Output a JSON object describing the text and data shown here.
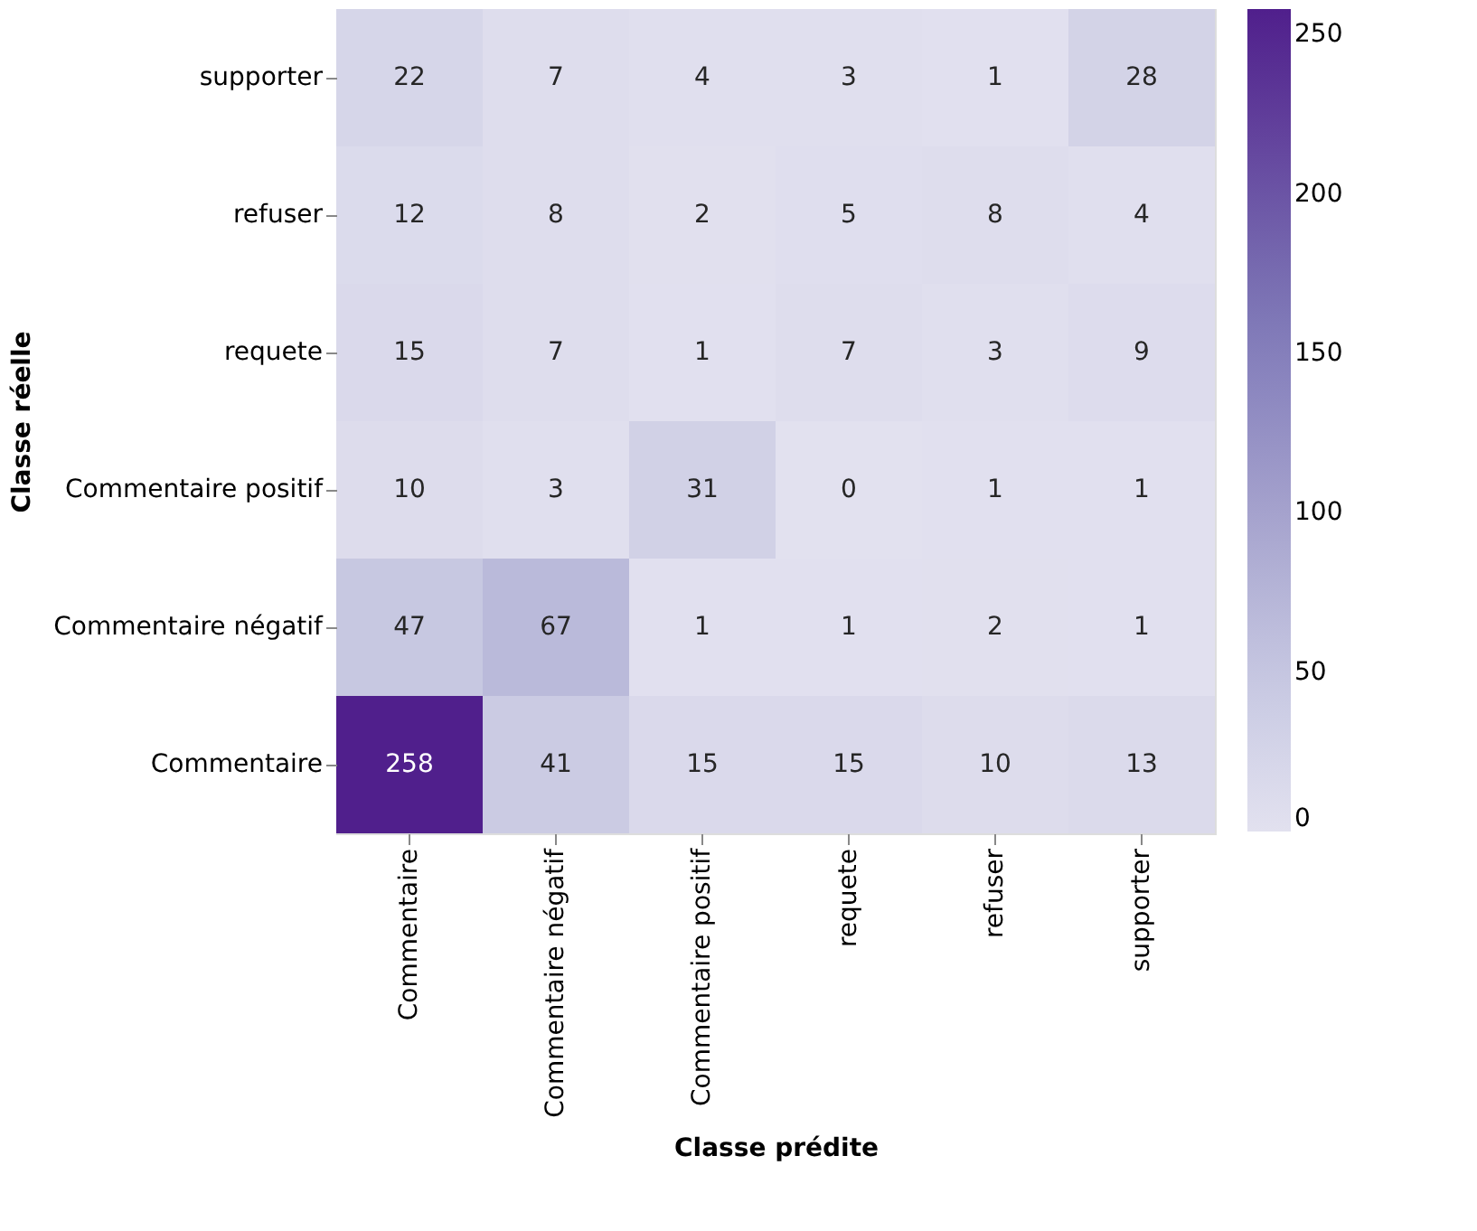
{
  "chart_data": {
    "type": "heatmap",
    "xlabel": "Classe prédite",
    "ylabel": "Classe réelle",
    "categories": [
      "Commentaire",
      "Commentaire négatif",
      "Commentaire positif",
      "requete",
      "refuser",
      "supporter"
    ],
    "y_categories": [
      "supporter",
      "refuser",
      "requete",
      "Commentaire positif",
      "Commentaire négatif",
      "Commentaire"
    ],
    "cells": [
      [
        22,
        7,
        4,
        3,
        1,
        28
      ],
      [
        12,
        8,
        2,
        5,
        8,
        4
      ],
      [
        15,
        7,
        1,
        7,
        3,
        9
      ],
      [
        10,
        3,
        31,
        0,
        1,
        1
      ],
      [
        47,
        67,
        1,
        1,
        2,
        1
      ],
      [
        258,
        41,
        15,
        15,
        10,
        13
      ]
    ],
    "clim": [
      0,
      258
    ],
    "cticks": [
      0,
      50,
      100,
      150,
      200,
      250
    ],
    "data_labels": true,
    "grid": false
  }
}
